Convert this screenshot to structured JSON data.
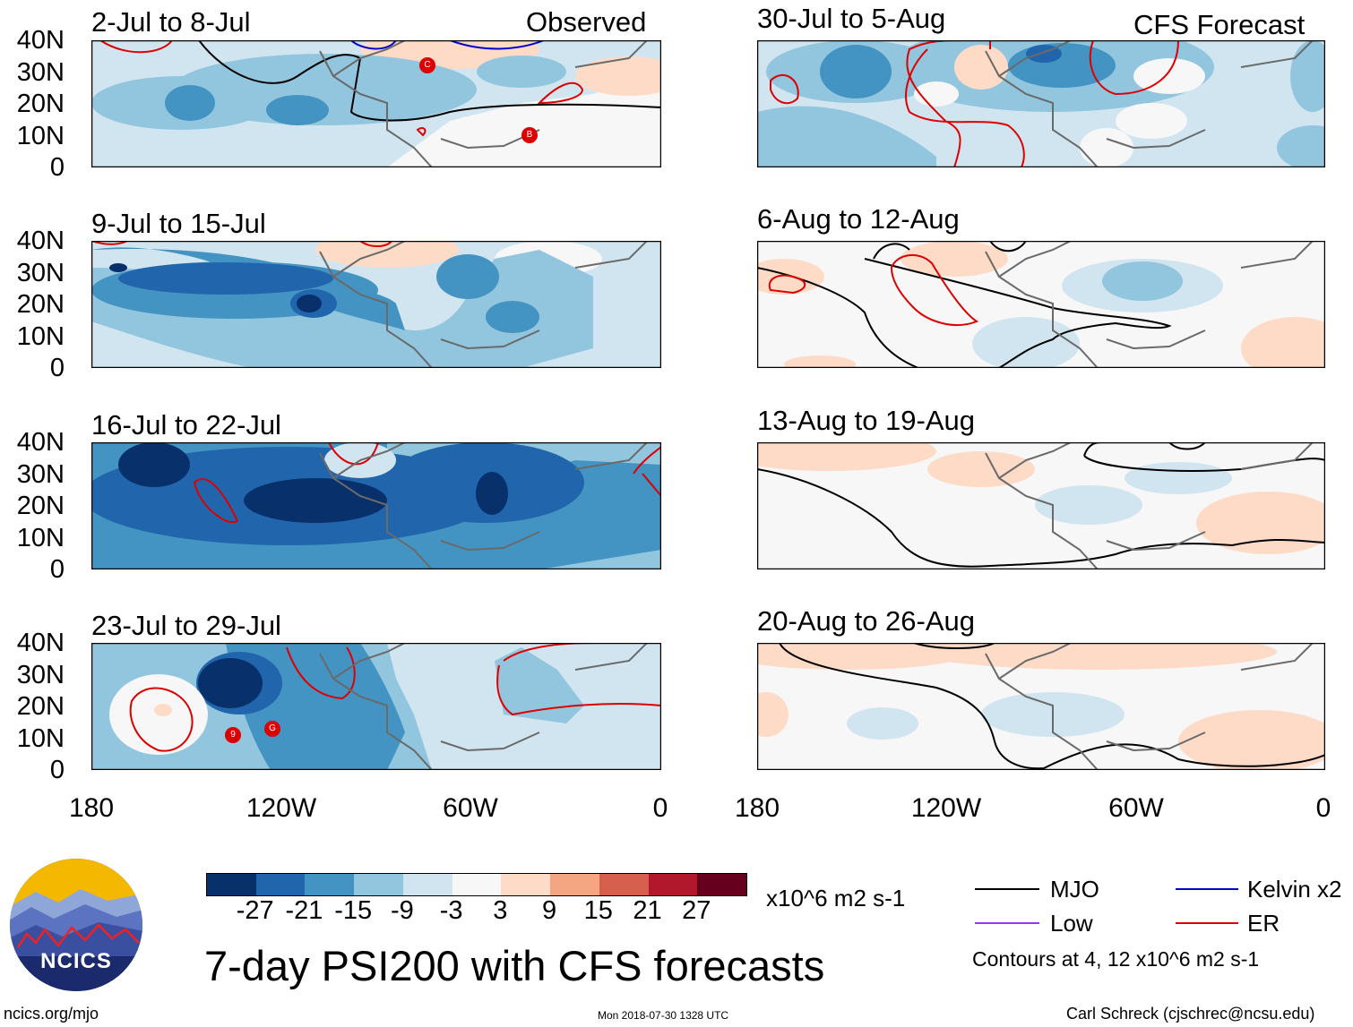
{
  "colors": {
    "neg27": "#08306b",
    "neg21": "#2166ac",
    "neg15": "#4393c3",
    "neg9": "#92c5de",
    "neg3": "#d1e5f0",
    "zero": "#f7f7f7",
    "pos3": "#fddbc7",
    "pos9": "#f4a582",
    "pos15": "#d6604d",
    "pos21": "#b2182b",
    "pos27": "#67001f",
    "mjo": "#000000",
    "kelvin": "#0000cc",
    "low": "#9933ff",
    "er": "#dd0000",
    "coast": "#6a6a6a"
  },
  "panels": {
    "p1": {
      "title": "2-Jul to 8-Jul",
      "label": "Observed"
    },
    "p2": {
      "title": "9-Jul to 15-Jul"
    },
    "p3": {
      "title": "16-Jul to 22-Jul"
    },
    "p4": {
      "title": "23-Jul to 29-Jul"
    },
    "p5": {
      "title": "30-Jul to 5-Aug",
      "label": "CFS Forecast"
    },
    "p6": {
      "title": "6-Aug to 12-Aug"
    },
    "p7": {
      "title": "13-Aug to 19-Aug"
    },
    "p8": {
      "title": "20-Aug to 26-Aug"
    }
  },
  "lat_labels": [
    "40N",
    "30N",
    "20N",
    "10N",
    "0"
  ],
  "lon_labels": [
    "180",
    "120W",
    "60W",
    "0"
  ],
  "storm_markers": {
    "c": "C",
    "b": "B",
    "nine": "9",
    "g": "G"
  },
  "colorbar": {
    "labels": [
      "-27",
      "-21",
      "-15",
      "-9",
      "-3",
      "3",
      "9",
      "15",
      "21",
      "27"
    ],
    "units": "x10^6 m2 s-1"
  },
  "legend": {
    "mjo": "MJO",
    "kelvin": "Kelvin x2",
    "low": "Low",
    "er": "ER",
    "contours": "Contours at 4, 12 x10^6 m2 s-1"
  },
  "main_title": "7-day PSI200 with CFS forecasts",
  "logo_text": "NCICS",
  "footer": {
    "url": "ncics.org/mjo",
    "timestamp": "Mon 2018-07-30 1328 UTC",
    "author": "Carl Schreck (cjschrec@ncsu.edu)"
  }
}
